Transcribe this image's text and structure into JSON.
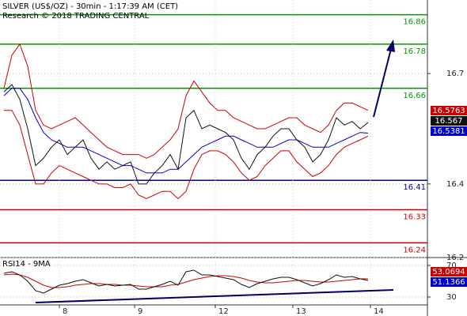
{
  "chart_data": [
    {
      "type": "line",
      "title": "SILVER (US$/OZ) - 30min - 1:17:39 AM (CET)",
      "subtitle": "Research © 2018 TRADING CENTRAL",
      "x": [
        0,
        1,
        2,
        3,
        4,
        5,
        6,
        7,
        8,
        9,
        10,
        11,
        12,
        13,
        14,
        15,
        16,
        17,
        18,
        19,
        20,
        21,
        22,
        23,
        24,
        25,
        26,
        27,
        28,
        29,
        30,
        31,
        32,
        33,
        34,
        35,
        36,
        37,
        38,
        39,
        40,
        41,
        42,
        43,
        44,
        45,
        46
      ],
      "xlim": [
        -0.5,
        53.5
      ],
      "ylim": [
        16.2,
        16.9
      ],
      "yticks": [
        16.2,
        16.4,
        16.7
      ],
      "grid": true,
      "series": [
        {
          "color": "#cc0000",
          "values": [
            16.66,
            16.75,
            16.78,
            16.72,
            16.6,
            16.56,
            16.55,
            16.56,
            16.57,
            16.58,
            16.56,
            16.54,
            16.52,
            16.5,
            16.49,
            16.48,
            16.48,
            16.48,
            16.47,
            16.48,
            16.5,
            16.52,
            16.55,
            16.64,
            16.68,
            16.65,
            16.62,
            16.6,
            16.6,
            16.58,
            16.57,
            16.56,
            16.55,
            16.55,
            16.56,
            16.57,
            16.58,
            16.58,
            16.56,
            16.55,
            16.54,
            16.56,
            16.6,
            16.62,
            16.62,
            16.61,
            16.6
          ]
        },
        {
          "color": "#cc0000",
          "values": [
            16.6,
            16.6,
            16.56,
            16.48,
            16.4,
            16.4,
            16.43,
            16.45,
            16.44,
            16.43,
            16.42,
            16.41,
            16.4,
            16.4,
            16.39,
            16.39,
            16.4,
            16.37,
            16.36,
            16.37,
            16.38,
            16.38,
            16.36,
            16.38,
            16.44,
            16.48,
            16.49,
            16.49,
            16.48,
            16.46,
            16.43,
            16.41,
            16.42,
            16.45,
            16.47,
            16.49,
            16.49,
            16.46,
            16.44,
            16.42,
            16.43,
            16.45,
            16.48,
            16.5,
            16.51,
            16.52,
            16.53
          ]
        },
        {
          "color": "#0000cc",
          "values": [
            16.64,
            16.66,
            16.66,
            16.63,
            16.58,
            16.54,
            16.52,
            16.51,
            16.5,
            16.5,
            16.5,
            16.49,
            16.48,
            16.47,
            16.46,
            16.45,
            16.45,
            16.44,
            16.43,
            16.43,
            16.43,
            16.44,
            16.44,
            16.46,
            16.48,
            16.5,
            16.51,
            16.52,
            16.53,
            16.53,
            16.52,
            16.51,
            16.5,
            16.5,
            16.5,
            16.51,
            16.52,
            16.52,
            16.51,
            16.5,
            16.5,
            16.5,
            16.51,
            16.52,
            16.53,
            16.54,
            16.5381
          ]
        },
        {
          "color": "#111111",
          "values": [
            16.65,
            16.67,
            16.63,
            16.55,
            16.45,
            16.47,
            16.5,
            16.52,
            16.48,
            16.5,
            16.52,
            16.47,
            16.44,
            16.46,
            16.44,
            16.45,
            16.46,
            16.4,
            16.4,
            16.43,
            16.45,
            16.48,
            16.44,
            16.58,
            16.6,
            16.55,
            16.56,
            16.55,
            16.54,
            16.52,
            16.47,
            16.44,
            16.48,
            16.5,
            16.53,
            16.55,
            16.55,
            16.52,
            16.5,
            16.46,
            16.48,
            16.52,
            16.58,
            16.56,
            16.57,
            16.55,
            16.567
          ]
        }
      ],
      "levels": [
        {
          "value": 16.86,
          "color": "#009900"
        },
        {
          "value": 16.78,
          "color": "#009900"
        },
        {
          "value": 16.66,
          "color": "#009900"
        },
        {
          "value": 16.41,
          "color": "#0000aa"
        },
        {
          "value": 16.33,
          "color": "#cc0000"
        },
        {
          "value": 16.24,
          "color": "#cc0000"
        }
      ],
      "last_labels": [
        {
          "value": 16.5763,
          "color": "#cc0000"
        },
        {
          "value": 16.567,
          "color": "#111111"
        },
        {
          "value": 16.5381,
          "color": "#0000cc"
        }
      ]
    },
    {
      "type": "line",
      "title": "RSI14 - 9MA",
      "x": [
        0,
        1,
        2,
        3,
        4,
        5,
        6,
        7,
        8,
        9,
        10,
        11,
        12,
        13,
        14,
        15,
        16,
        17,
        18,
        19,
        20,
        21,
        22,
        23,
        24,
        25,
        26,
        27,
        28,
        29,
        30,
        31,
        32,
        33,
        34,
        35,
        36,
        37,
        38,
        39,
        40,
        41,
        42,
        43,
        44,
        45,
        46
      ],
      "xlim": [
        -0.5,
        53.5
      ],
      "xticks": [
        {
          "value": 7,
          "label": "8"
        },
        {
          "value": 16.5,
          "label": "9"
        },
        {
          "value": 26.7,
          "label": "12"
        },
        {
          "value": 36.5,
          "label": "13"
        },
        {
          "value": 46.3,
          "label": "14"
        }
      ],
      "ylim": [
        20,
        80
      ],
      "yticks": [
        30,
        70
      ],
      "grid": true,
      "series": [
        {
          "color": "#cc0000",
          "values": [
            58,
            59,
            58,
            55,
            50,
            45,
            42,
            42,
            43,
            45,
            46,
            47,
            47,
            46,
            46,
            45,
            45,
            44,
            43,
            43,
            43,
            45,
            46,
            49,
            52,
            54,
            56,
            57,
            57,
            56,
            54,
            51,
            49,
            48,
            48,
            49,
            50,
            51,
            51,
            50,
            49,
            49,
            50,
            51,
            52,
            53,
            53.0694
          ]
        },
        {
          "color": "#111111",
          "values": [
            60,
            62,
            58,
            50,
            38,
            35,
            40,
            45,
            47,
            50,
            52,
            48,
            44,
            46,
            44,
            45,
            46,
            40,
            40,
            43,
            46,
            50,
            45,
            62,
            64,
            58,
            58,
            56,
            54,
            52,
            46,
            42,
            47,
            50,
            53,
            55,
            55,
            52,
            48,
            44,
            47,
            52,
            58,
            55,
            56,
            53,
            51.1366
          ]
        }
      ],
      "last_labels": [
        {
          "value": 53.0694,
          "color": "#cc0000"
        },
        {
          "value": 51.1366,
          "color": "#0000cc"
        }
      ]
    }
  ]
}
